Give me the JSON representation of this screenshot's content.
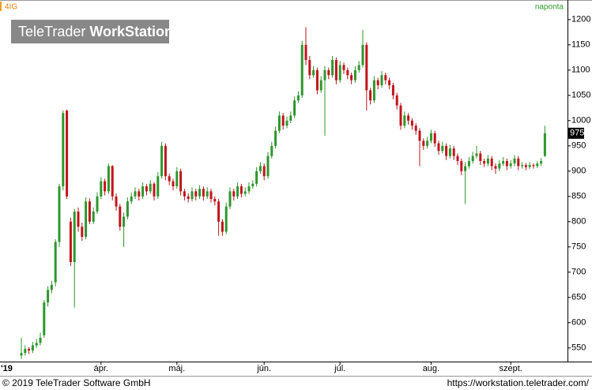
{
  "chart_data": {
    "type": "candlestick",
    "symbol": "4IG",
    "period": "naponta",
    "watermark": {
      "brand": "TeleTrader",
      "product": "WorkStation"
    },
    "footer_left": "© 2019 TeleTrader Software GmbH",
    "footer_right": "https://workstation.teletrader.com/",
    "year_label": "'19",
    "up_color": "#2e962e",
    "down_color": "#c0141a",
    "ylim": [
      523,
      1231
    ],
    "yticks": [
      550,
      600,
      650,
      700,
      750,
      800,
      850,
      900,
      950,
      1000,
      1050,
      1100,
      1150,
      1200
    ],
    "categories": [
      null,
      null,
      null,
      null,
      null,
      null,
      null,
      null,
      null,
      null,
      null,
      null,
      null,
      null,
      null,
      null,
      null,
      null,
      null,
      null,
      null,
      "ápr.",
      null,
      null,
      null,
      null,
      null,
      null,
      null,
      null,
      null,
      null,
      null,
      null,
      null,
      null,
      null,
      null,
      null,
      null,
      null,
      "máj.",
      null,
      null,
      null,
      null,
      null,
      null,
      null,
      null,
      null,
      null,
      null,
      null,
      null,
      null,
      null,
      null,
      null,
      null,
      null,
      null,
      null,
      null,
      "jún.",
      null,
      null,
      null,
      null,
      null,
      null,
      null,
      null,
      null,
      null,
      null,
      null,
      null,
      null,
      null,
      null,
      null,
      null,
      null,
      "júl.",
      null,
      null,
      null,
      null,
      null,
      null,
      null,
      null,
      null,
      null,
      null,
      null,
      null,
      null,
      null,
      null,
      null,
      null,
      null,
      null,
      null,
      null,
      null,
      "aug.",
      null,
      null,
      null,
      null,
      null,
      null,
      null,
      null,
      null,
      null,
      null,
      null,
      null,
      null,
      null,
      null,
      null,
      null,
      null,
      null,
      "szept.",
      null,
      null,
      null,
      null,
      null,
      null,
      null,
      null,
      null
    ],
    "ohlc": [
      [
        535,
        570,
        528,
        540
      ],
      [
        540,
        555,
        535,
        548
      ],
      [
        548,
        552,
        538,
        545
      ],
      [
        545,
        562,
        540,
        555
      ],
      [
        555,
        568,
        550,
        560
      ],
      [
        560,
        580,
        555,
        570
      ],
      [
        575,
        645,
        570,
        640
      ],
      [
        640,
        672,
        632,
        665
      ],
      [
        665,
        683,
        658,
        675
      ],
      [
        680,
        765,
        672,
        760
      ],
      [
        760,
        875,
        750,
        870
      ],
      [
        870,
        1020,
        862,
        1015
      ],
      [
        1020,
        1022,
        845,
        850
      ],
      [
        800,
        808,
        712,
        720
      ],
      [
        720,
        825,
        630,
        820
      ],
      [
        820,
        828,
        780,
        790
      ],
      [
        790,
        798,
        762,
        770
      ],
      [
        770,
        848,
        765,
        840
      ],
      [
        840,
        846,
        795,
        800
      ],
      [
        800,
        828,
        795,
        820
      ],
      [
        820,
        858,
        815,
        850
      ],
      [
        850,
        888,
        845,
        880
      ],
      [
        880,
        885,
        852,
        860
      ],
      [
        860,
        915,
        855,
        910
      ],
      [
        910,
        912,
        842,
        850
      ],
      [
        850,
        856,
        822,
        830
      ],
      [
        830,
        835,
        782,
        790
      ],
      [
        790,
        818,
        750,
        810
      ],
      [
        810,
        848,
        805,
        840
      ],
      [
        840,
        858,
        835,
        850
      ],
      [
        850,
        868,
        845,
        860
      ],
      [
        860,
        865,
        842,
        850
      ],
      [
        850,
        878,
        845,
        870
      ],
      [
        870,
        875,
        852,
        860
      ],
      [
        860,
        882,
        855,
        875
      ],
      [
        875,
        878,
        842,
        850
      ],
      [
        850,
        898,
        845,
        890
      ],
      [
        890,
        958,
        885,
        950
      ],
      [
        950,
        955,
        882,
        890
      ],
      [
        890,
        895,
        872,
        880
      ],
      [
        880,
        885,
        862,
        870
      ],
      [
        870,
        908,
        865,
        900
      ],
      [
        900,
        905,
        852,
        860
      ],
      [
        860,
        865,
        842,
        850
      ],
      [
        850,
        856,
        838,
        845
      ],
      [
        845,
        868,
        840,
        860
      ],
      [
        860,
        865,
        842,
        850
      ],
      [
        850,
        872,
        845,
        865
      ],
      [
        865,
        870,
        842,
        850
      ],
      [
        850,
        868,
        845,
        860
      ],
      [
        860,
        865,
        838,
        845
      ],
      [
        845,
        850,
        832,
        840
      ],
      [
        840,
        845,
        772,
        800
      ],
      [
        800,
        805,
        772,
        780
      ],
      [
        780,
        838,
        775,
        830
      ],
      [
        830,
        868,
        825,
        860
      ],
      [
        860,
        865,
        842,
        850
      ],
      [
        850,
        878,
        845,
        870
      ],
      [
        870,
        875,
        848,
        855
      ],
      [
        855,
        868,
        850,
        860
      ],
      [
        860,
        878,
        855,
        870
      ],
      [
        870,
        882,
        865,
        875
      ],
      [
        875,
        908,
        870,
        900
      ],
      [
        900,
        918,
        895,
        910
      ],
      [
        910,
        915,
        882,
        890
      ],
      [
        890,
        938,
        885,
        930
      ],
      [
        930,
        958,
        925,
        950
      ],
      [
        950,
        988,
        945,
        980
      ],
      [
        980,
        1018,
        975,
        1010
      ],
      [
        1010,
        1015,
        982,
        990
      ],
      [
        990,
        1008,
        985,
        1000
      ],
      [
        1000,
        1018,
        995,
        1010
      ],
      [
        1010,
        1048,
        1005,
        1040
      ],
      [
        1040,
        1058,
        1035,
        1050
      ],
      [
        1050,
        1158,
        1045,
        1150
      ],
      [
        1150,
        1185,
        1110,
        1120
      ],
      [
        1120,
        1128,
        1082,
        1090
      ],
      [
        1090,
        1108,
        1085,
        1100
      ],
      [
        1100,
        1105,
        1052,
        1060
      ],
      [
        1060,
        1088,
        1055,
        1080
      ],
      [
        1080,
        1108,
        970,
        1100
      ],
      [
        1100,
        1105,
        1082,
        1090
      ],
      [
        1090,
        1128,
        1085,
        1120
      ],
      [
        1120,
        1125,
        1072,
        1080
      ],
      [
        1080,
        1118,
        1075,
        1110
      ],
      [
        1110,
        1115,
        1092,
        1100
      ],
      [
        1100,
        1105,
        1082,
        1090
      ],
      [
        1090,
        1095,
        1072,
        1080
      ],
      [
        1080,
        1108,
        1075,
        1100
      ],
      [
        1100,
        1118,
        1095,
        1110
      ],
      [
        1110,
        1180,
        1105,
        1150
      ],
      [
        1150,
        1155,
        1020,
        1060
      ],
      [
        1060,
        1065,
        1032,
        1040
      ],
      [
        1040,
        1088,
        1035,
        1080
      ],
      [
        1080,
        1085,
        1062,
        1070
      ],
      [
        1070,
        1098,
        1065,
        1090
      ],
      [
        1090,
        1095,
        1072,
        1080
      ],
      [
        1080,
        1085,
        1062,
        1070
      ],
      [
        1070,
        1075,
        1042,
        1050
      ],
      [
        1050,
        1055,
        1022,
        1030
      ],
      [
        1030,
        1035,
        982,
        990
      ],
      [
        990,
        1018,
        985,
        1010
      ],
      [
        1010,
        1015,
        992,
        1000
      ],
      [
        1000,
        1005,
        982,
        990
      ],
      [
        990,
        995,
        972,
        980
      ],
      [
        980,
        985,
        910,
        960
      ],
      [
        960,
        965,
        942,
        950
      ],
      [
        950,
        968,
        945,
        960
      ],
      [
        960,
        982,
        955,
        975
      ],
      [
        975,
        980,
        948,
        955
      ],
      [
        955,
        960,
        932,
        940
      ],
      [
        940,
        958,
        935,
        950
      ],
      [
        950,
        955,
        922,
        930
      ],
      [
        930,
        952,
        925,
        945
      ],
      [
        945,
        950,
        922,
        930
      ],
      [
        930,
        935,
        912,
        920
      ],
      [
        920,
        925,
        892,
        900
      ],
      [
        900,
        918,
        835,
        910
      ],
      [
        910,
        928,
        905,
        920
      ],
      [
        920,
        938,
        915,
        930
      ],
      [
        930,
        950,
        925,
        935
      ],
      [
        935,
        940,
        912,
        920
      ],
      [
        920,
        925,
        908,
        915
      ],
      [
        915,
        932,
        910,
        925
      ],
      [
        925,
        930,
        902,
        910
      ],
      [
        910,
        915,
        895,
        905
      ],
      [
        905,
        922,
        900,
        915
      ],
      [
        915,
        928,
        910,
        920
      ],
      [
        920,
        925,
        902,
        910
      ],
      [
        910,
        922,
        905,
        915
      ],
      [
        915,
        932,
        910,
        925
      ],
      [
        925,
        930,
        902,
        910
      ],
      [
        910,
        918,
        905,
        912
      ],
      [
        912,
        916,
        902,
        908
      ],
      [
        908,
        918,
        904,
        912
      ],
      [
        912,
        915,
        905,
        910
      ],
      [
        910,
        920,
        906,
        915
      ],
      [
        915,
        926,
        910,
        920
      ],
      [
        930,
        990,
        928,
        975
      ]
    ]
  }
}
